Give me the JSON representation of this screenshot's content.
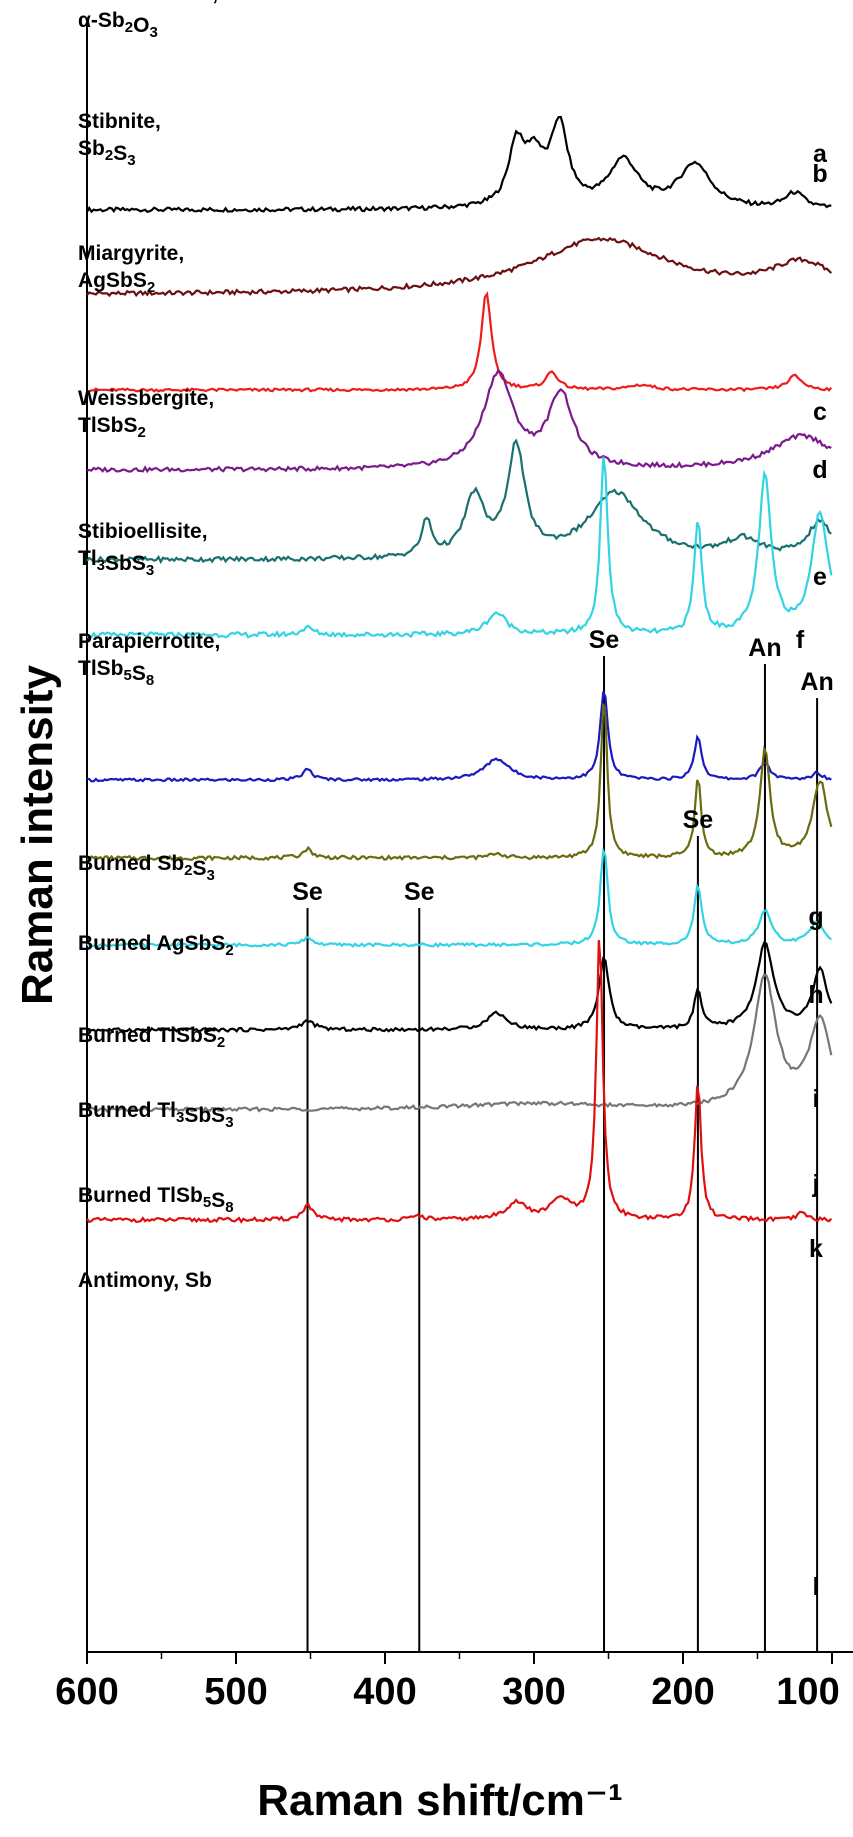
{
  "chart_data": {
    "type": "line",
    "xlabel": "Raman shift/cm⁻¹",
    "ylabel": "Raman intensity",
    "xlim": [
      600,
      100
    ],
    "x_reversed": true,
    "x_ticks": [
      "600",
      "500",
      "400",
      "300",
      "200",
      "100"
    ],
    "y_ticks_shown": false,
    "grid": false,
    "legend": "none",
    "reference_lines": [
      {
        "x": 452,
        "label": "Se"
      },
      {
        "x": 377,
        "label": "Se"
      },
      {
        "x": 253,
        "label": "Se"
      },
      {
        "x": 190,
        "label": "Se"
      },
      {
        "x": 145,
        "label": "An"
      },
      {
        "x": 110,
        "label": "An"
      }
    ],
    "series": [
      {
        "letter": "a",
        "label": [
          "Stibnite,",
          "Sb₂S₃"
        ],
        "color": "#000000",
        "baseline": 1,
        "peaks": [
          [
            312,
            0.55,
            6
          ],
          [
            300,
            0.45,
            8
          ],
          [
            283,
            0.75,
            7
          ],
          [
            240,
            0.45,
            12
          ],
          [
            192,
            0.42,
            13
          ],
          [
            125,
            0.15,
            8
          ]
        ]
      },
      {
        "letter": "b",
        "label": [
          "Miargyrite,",
          "AgSbS₂"
        ],
        "color": "#6b1010",
        "baseline": 2,
        "peaks": [
          [
            255,
            0.5,
            55
          ],
          [
            120,
            0.25,
            25
          ]
        ]
      },
      {
        "letter": "c",
        "label": [
          "Weissbergite,",
          "TlSbS₂"
        ],
        "color": "#ee1c1c",
        "baseline": 3,
        "peaks": [
          [
            332,
            1.4,
            4
          ],
          [
            288,
            0.25,
            5
          ],
          [
            228,
            0.07,
            10
          ],
          [
            125,
            0.2,
            6
          ]
        ]
      },
      {
        "letter": "d",
        "label": [
          "Stibioellisite,",
          "Tl₃SbS₃"
        ],
        "color": "#7a1b8c",
        "baseline": 4,
        "peaks": [
          [
            324,
            0.9,
            12
          ],
          [
            282,
            0.7,
            10
          ],
          [
            120,
            0.32,
            25
          ]
        ]
      },
      {
        "letter": "e",
        "label": [
          "Parapierrotite,",
          "TlSb₅S₈"
        ],
        "color": "#1a7070",
        "baseline": 5,
        "peaks": [
          [
            372,
            0.3,
            4
          ],
          [
            340,
            0.5,
            8
          ],
          [
            312,
            0.9,
            7
          ],
          [
            245,
            0.55,
            22
          ],
          [
            160,
            0.15,
            15
          ],
          [
            108,
            0.3,
            10
          ]
        ]
      },
      {
        "letter": "f",
        "label": [
          "Burned Sb₂S₃"
        ],
        "color": "#33d3e4",
        "baseline": 6,
        "peaks": [
          [
            452,
            0.06,
            5
          ],
          [
            325,
            0.18,
            8
          ],
          [
            253,
            1.5,
            3
          ],
          [
            190,
            0.95,
            3
          ],
          [
            145,
            1.3,
            5
          ],
          [
            108,
            1.0,
            7
          ]
        ]
      },
      {
        "letter": "g",
        "label": [
          "Burned AgSbS₂"
        ],
        "color": "#1a1ac0",
        "baseline": 7,
        "peaks": [
          [
            452,
            0.15,
            4
          ],
          [
            325,
            0.3,
            10
          ],
          [
            253,
            1.3,
            3
          ],
          [
            190,
            0.62,
            3
          ],
          [
            145,
            0.25,
            4
          ],
          [
            110,
            0.1,
            4
          ]
        ]
      },
      {
        "letter": "h",
        "label": [
          "Burned TlSbS₂"
        ],
        "color": "#6b6b10",
        "baseline": 8,
        "peaks": [
          [
            452,
            0.1,
            4
          ],
          [
            325,
            0.05,
            5
          ],
          [
            253,
            1.8,
            2.5
          ],
          [
            190,
            0.9,
            2.5
          ],
          [
            145,
            1.2,
            4
          ],
          [
            108,
            0.85,
            6
          ]
        ]
      },
      {
        "letter": "i",
        "label": [
          "Burned Tl₃SbS₃"
        ],
        "color": "#33d3e4",
        "baseline": 9,
        "peaks": [
          [
            452,
            0.1,
            4
          ],
          [
            253,
            1.3,
            3
          ],
          [
            190,
            0.8,
            3
          ],
          [
            145,
            0.45,
            5
          ],
          [
            110,
            0.3,
            6
          ]
        ]
      },
      {
        "letter": "j",
        "label": [
          "Burned TlSb₅S₈"
        ],
        "color": "#000000",
        "baseline": 10,
        "peaks": [
          [
            452,
            0.1,
            6
          ],
          [
            325,
            0.2,
            8
          ],
          [
            253,
            0.85,
            4
          ],
          [
            190,
            0.45,
            3
          ],
          [
            145,
            1.0,
            7
          ],
          [
            108,
            0.7,
            6
          ]
        ]
      },
      {
        "letter": "k",
        "label": [
          "Antimony, Sb"
        ],
        "color": "#777777",
        "baseline": 11,
        "peaks": [
          [
            300,
            0.07,
            60
          ],
          [
            145,
            1.45,
            9
          ],
          [
            108,
            0.95,
            9
          ]
        ]
      },
      {
        "letter": "l",
        "label": [
          "Senarmontite,",
          "α-Sb₂O₃"
        ],
        "color": "#e01010",
        "baseline": 12,
        "peaks": [
          [
            452,
            0.15,
            4
          ],
          [
            377,
            0.04,
            4
          ],
          [
            312,
            0.17,
            8
          ],
          [
            282,
            0.2,
            8
          ],
          [
            256,
            2.9,
            2.5
          ],
          [
            190,
            1.4,
            2.5
          ],
          [
            120,
            0.08,
            3
          ]
        ]
      }
    ]
  }
}
